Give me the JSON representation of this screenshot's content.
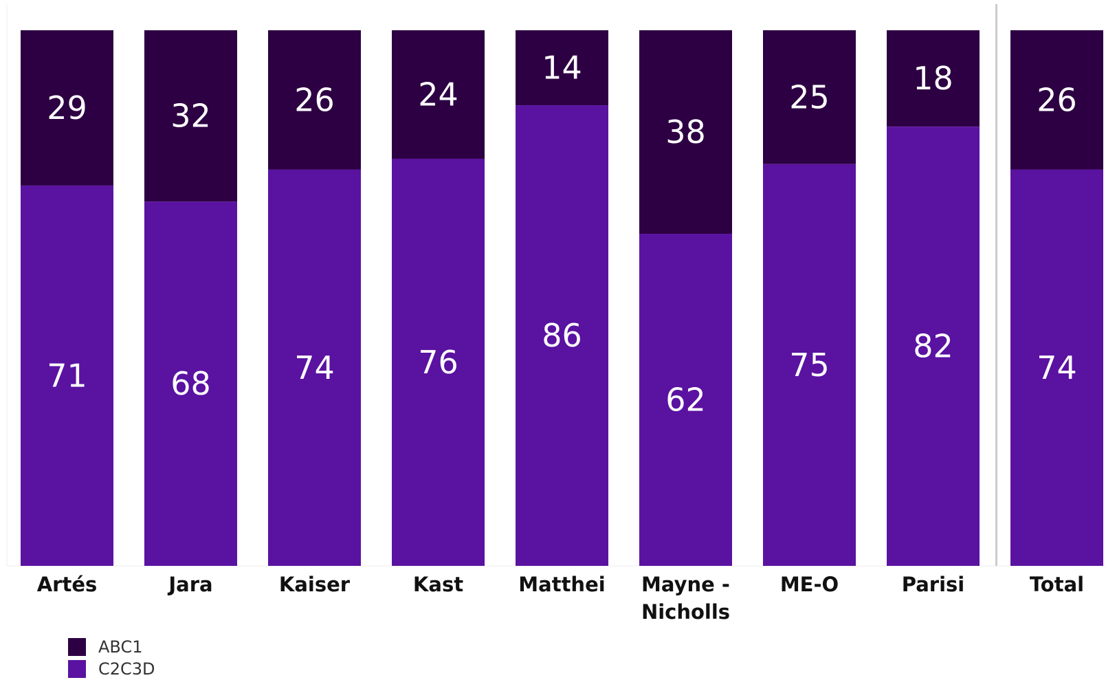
{
  "chart_data": {
    "type": "bar",
    "stacked": true,
    "categories": [
      "Artés",
      "Jara",
      "Kaiser",
      "Kast",
      "Matthei",
      "Mayne - Nicholls",
      "ME-O",
      "Parisi",
      "Total"
    ],
    "series": [
      {
        "name": "ABC1",
        "color": "#2d0043",
        "values": [
          29,
          32,
          26,
          24,
          14,
          38,
          25,
          18,
          26
        ]
      },
      {
        "name": "C2C3D",
        "color": "#5a12a1",
        "values": [
          71,
          68,
          74,
          76,
          86,
          62,
          75,
          82,
          74
        ]
      }
    ],
    "ylim": [
      0,
      100
    ],
    "title": "",
    "xlabel": "",
    "ylabel": "",
    "grid": false,
    "legend_position": "bottom-left"
  },
  "legend": {
    "items": [
      {
        "label": "ABC1",
        "color": "#2d0043"
      },
      {
        "label": "C2C3D",
        "color": "#5a12a1"
      }
    ]
  }
}
